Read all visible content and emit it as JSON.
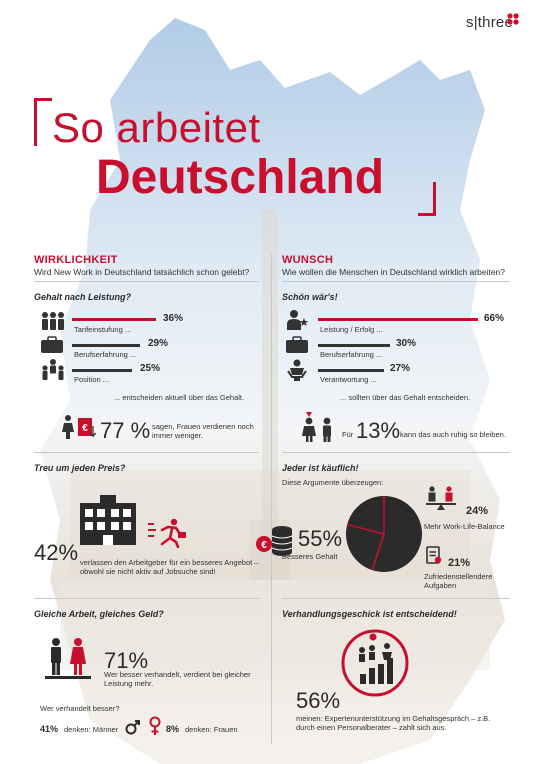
{
  "logo": {
    "text": "s|three"
  },
  "title": {
    "line1": "So arbeitet",
    "line2": "Deutschland"
  },
  "left": {
    "heading": "WIRKLICHKEIT",
    "subheading": "Wird New Work in Deutschland tatsächlich schon gelebt?",
    "salary": {
      "question": "Gehalt nach Leistung?",
      "items": [
        {
          "label": "Tarifeinstufung ...",
          "value": "36%",
          "fraction": 0.36
        },
        {
          "label": "Berufserfahrung ...",
          "value": "29%",
          "fraction": 0.29
        },
        {
          "label": "Position ...",
          "value": "25%",
          "fraction": 0.25
        }
      ],
      "note": "... entscheiden aktuell über das Gehalt.",
      "women_value": "77 %",
      "women_text": "sagen, Frauen verdienen noch immer weniger."
    },
    "loyalty": {
      "question": "Treu um jeden Preis?",
      "value": "42%",
      "text": "verlassen den Arbeitgeber für ein besseres Angebot – obwohl sie nicht aktiv auf Jobsuche sind!"
    },
    "equal_pay": {
      "question": "Gleiche Arbeit, gleiches Geld?",
      "value": "71%",
      "text": "Wer besser verhandelt, verdient bei gleicher Leistung mehr.",
      "who_question": "Wer verhandelt besser?",
      "men_value": "41%",
      "men_text": "denken: Männer",
      "women_value": "8%",
      "women_text": "denken: Frauen"
    }
  },
  "right": {
    "heading": "WUNSCH",
    "subheading": "Wie wollen die Menschen in Deutschland wirklich arbeiten?",
    "wish": {
      "question": "Schön wär's!",
      "items": [
        {
          "label": "Leistung / Erfolg ...",
          "value": "66%",
          "fraction": 0.66
        },
        {
          "label": "Berufserfahrung ...",
          "value": "30%",
          "fraction": 0.3
        },
        {
          "label": "Verantwortung ...",
          "value": "27%",
          "fraction": 0.27
        }
      ],
      "note": "... sollten über das Gehalt entscheiden.",
      "prefix": "Für",
      "value": "13%",
      "text": "kann das auch ruhig so bleiben."
    },
    "buyable": {
      "question": "Jeder ist käuflich!",
      "intro": "Diese Argumente überzeugen:",
      "main_value": "55%",
      "main_label": "Besseres Gehalt",
      "a_value": "24%",
      "a_label": "Mehr Work-Life-Balance",
      "b_value": "21%",
      "b_label": "Zufriedenstellendere Aufgaben",
      "colors": {
        "main": "#2b2b2b",
        "a": "#c8102e",
        "b": "#2b2b2b"
      }
    },
    "negotiation": {
      "question": "Verhandlungsgeschick ist entscheidend!",
      "value": "56%",
      "text": "meinen: Expertenunterstützung im Gehaltsgespräch – z.B. durch einen Personalberater – zahlt sich aus."
    }
  },
  "colors": {
    "accent": "#c8102e",
    "dark": "#2b2b2b"
  }
}
